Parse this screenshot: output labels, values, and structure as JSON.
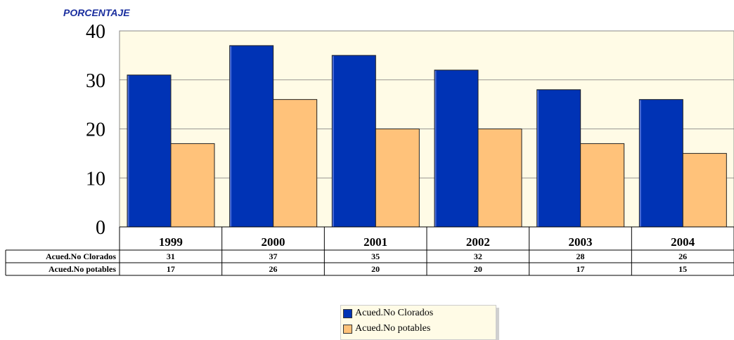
{
  "chart_data": {
    "type": "bar",
    "title": "",
    "xlabel": "",
    "ylabel": "PORCENTAJE",
    "ylim": [
      0,
      40
    ],
    "yticks": [
      0,
      10,
      20,
      30,
      40
    ],
    "grid": true,
    "legend_position": "bottom",
    "categories": [
      "1999",
      "2000",
      "2001",
      "2002",
      "2003",
      "2004"
    ],
    "series": [
      {
        "name": "Acued.No Clorados",
        "color": "#0033b5",
        "values": [
          31,
          37,
          35,
          32,
          28,
          26
        ]
      },
      {
        "name": "Acued.No potables",
        "color": "#ffc27a",
        "values": [
          17,
          26,
          20,
          20,
          17,
          15
        ]
      }
    ],
    "plot_background": "#fffbe6"
  }
}
